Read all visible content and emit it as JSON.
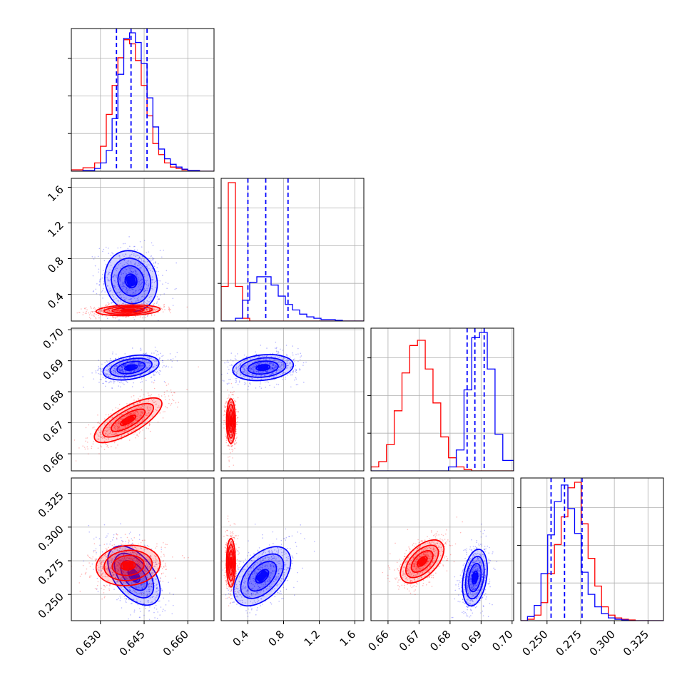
{
  "chart_data": {
    "type": "corner",
    "title": "",
    "grid": true,
    "series_colors": {
      "model_a": "#0000ff",
      "model_b": "#ff0000"
    },
    "parameters": [
      {
        "name": "",
        "range": [
          0.62,
          0.669
        ],
        "ticks": [
          0.63,
          0.645,
          0.66
        ],
        "tick_labels": [
          "0.630",
          "0.645",
          "0.660"
        ]
      },
      {
        "name": "",
        "range": [
          0.1,
          1.7
        ],
        "ticks": [
          0.4,
          0.8,
          1.2,
          1.6
        ],
        "tick_labels": [
          "0.4",
          "0.8",
          "1.2",
          "1.6"
        ]
      },
      {
        "name": "",
        "range": [
          0.6545,
          0.7005
        ],
        "ticks": [
          0.66,
          0.67,
          0.68,
          0.69,
          0.7
        ],
        "tick_labels": [
          "0.66",
          "0.67",
          "0.68",
          "0.69",
          "0.70"
        ]
      },
      {
        "name": "",
        "range": [
          0.2305,
          0.3365
        ],
        "ticks": [
          0.25,
          0.275,
          0.3,
          0.325
        ],
        "tick_labels": [
          "0.250",
          "0.275",
          "0.300",
          "0.325"
        ]
      }
    ],
    "histograms": [
      {
        "param": 0,
        "quantiles_blue": [
          0.6355,
          0.6405,
          0.646
        ],
        "bin_edges": [
          0.62,
          0.624,
          0.628,
          0.63,
          0.632,
          0.634,
          0.636,
          0.638,
          0.64,
          0.642,
          0.644,
          0.646,
          0.648,
          0.65,
          0.652,
          0.654,
          0.656,
          0.658,
          0.66,
          0.664,
          0.669
        ],
        "blue": [
          0.0,
          0.005,
          0.02,
          0.06,
          0.15,
          0.38,
          0.7,
          0.96,
          1.0,
          0.93,
          0.78,
          0.53,
          0.32,
          0.16,
          0.09,
          0.05,
          0.03,
          0.015,
          0.005,
          0.0
        ],
        "red": [
          0.01,
          0.025,
          0.06,
          0.18,
          0.41,
          0.62,
          0.82,
          0.95,
          0.92,
          0.8,
          0.62,
          0.4,
          0.2,
          0.12,
          0.06,
          0.03,
          0.02,
          0.01,
          0.005,
          0.0
        ]
      },
      {
        "param": 1,
        "quantiles_blue": [
          0.4,
          0.6,
          0.85
        ],
        "bin_edges": [
          0.1,
          0.18,
          0.26,
          0.34,
          0.42,
          0.5,
          0.58,
          0.66,
          0.74,
          0.82,
          0.9,
          0.98,
          1.06,
          1.14,
          1.22,
          1.3,
          1.38,
          1.46,
          1.54,
          1.62,
          1.7
        ],
        "blue": [
          0.0,
          0.0,
          0.02,
          0.15,
          0.28,
          0.32,
          0.32,
          0.26,
          0.18,
          0.12,
          0.08,
          0.05,
          0.03,
          0.02,
          0.01,
          0.01,
          0.005,
          0.0,
          0.0,
          0.0
        ],
        "red": [
          0.25,
          1.0,
          0.25,
          0.02,
          0.0,
          0.0,
          0.0,
          0.0,
          0.0,
          0.0,
          0.0,
          0.0,
          0.0,
          0.0,
          0.0,
          0.0,
          0.0,
          0.0,
          0.0,
          0.0
        ]
      },
      {
        "param": 2,
        "quantiles_blue": [
          0.6855,
          0.688,
          0.691
        ],
        "bin_edges": [
          0.6545,
          0.657,
          0.6595,
          0.662,
          0.6645,
          0.667,
          0.6695,
          0.672,
          0.6745,
          0.677,
          0.6795,
          0.682,
          0.6845,
          0.687,
          0.6895,
          0.692,
          0.6945,
          0.697,
          0.7005
        ],
        "blue": [
          0.0,
          0.0,
          0.0,
          0.0,
          0.0,
          0.0,
          0.0,
          0.0,
          0.0,
          0.0,
          0.03,
          0.16,
          0.62,
          1.02,
          1.06,
          0.78,
          0.28,
          0.08
        ],
        "red": [
          0.03,
          0.07,
          0.2,
          0.46,
          0.75,
          0.96,
          1.0,
          0.78,
          0.52,
          0.26,
          0.1,
          0.03,
          0.01,
          0.0,
          0.0,
          0.0,
          0.0,
          0.0
        ]
      },
      {
        "param": 3,
        "quantiles_blue": [
          0.253,
          0.263,
          0.276
        ],
        "bin_edges": [
          0.2305,
          0.2355,
          0.2405,
          0.2455,
          0.2505,
          0.2555,
          0.2605,
          0.2655,
          0.2705,
          0.2755,
          0.2805,
          0.2855,
          0.2905,
          0.2955,
          0.3005,
          0.3055,
          0.3105,
          0.3155,
          0.3205,
          0.3255,
          0.3305,
          0.3365
        ],
        "blue": [
          0.0,
          0.03,
          0.11,
          0.34,
          0.62,
          0.86,
          0.98,
          0.81,
          0.63,
          0.35,
          0.19,
          0.1,
          0.05,
          0.02,
          0.01,
          0.005,
          0.0,
          0.0,
          0.0,
          0.0,
          0.0
        ],
        "red": [
          0.0,
          0.01,
          0.04,
          0.13,
          0.34,
          0.55,
          0.75,
          0.96,
          1.0,
          0.7,
          0.45,
          0.25,
          0.1,
          0.04,
          0.02,
          0.01,
          0.005,
          0.0,
          0.0,
          0.0,
          0.0
        ]
      }
    ],
    "pairs": [
      {
        "x": 0,
        "y": 1,
        "blue": {
          "cx": 0.6405,
          "cy": 0.55,
          "sx": 0.0045,
          "sy": 0.17,
          "rho": -0.1
        },
        "red": {
          "cx": 0.6395,
          "cy": 0.22,
          "sx": 0.0055,
          "sy": 0.03,
          "rho": 0.2
        }
      },
      {
        "x": 0,
        "y": 2,
        "blue": {
          "cx": 0.6405,
          "cy": 0.6878,
          "sx": 0.0048,
          "sy": 0.002,
          "rho": 0.35
        },
        "red": {
          "cx": 0.6395,
          "cy": 0.6708,
          "sx": 0.0058,
          "sy": 0.0036,
          "rho": 0.75
        }
      },
      {
        "x": 0,
        "y": 3,
        "blue": {
          "cx": 0.6415,
          "cy": 0.264,
          "sx": 0.0045,
          "sy": 0.011,
          "rho": -0.5
        },
        "red": {
          "cx": 0.6395,
          "cy": 0.2715,
          "sx": 0.0055,
          "sy": 0.0075,
          "rho": 0.1
        }
      },
      {
        "x": 1,
        "y": 2,
        "blue": {
          "cx": 0.57,
          "cy": 0.6878,
          "sx": 0.17,
          "sy": 0.0021,
          "rho": 0.2
        },
        "red": {
          "cx": 0.21,
          "cy": 0.6705,
          "sx": 0.025,
          "sy": 0.0036,
          "rho": 0.0
        }
      },
      {
        "x": 1,
        "y": 3,
        "blue": {
          "cx": 0.56,
          "cy": 0.2635,
          "sx": 0.16,
          "sy": 0.011,
          "rho": 0.5
        },
        "red": {
          "cx": 0.21,
          "cy": 0.2735,
          "sx": 0.025,
          "sy": 0.009,
          "rho": 0.0
        }
      },
      {
        "x": 2,
        "y": 3,
        "blue": {
          "cx": 0.688,
          "cy": 0.2625,
          "sx": 0.002,
          "sy": 0.0105,
          "rho": 0.3
        },
        "red": {
          "cx": 0.671,
          "cy": 0.2745,
          "sx": 0.0035,
          "sy": 0.008,
          "rho": 0.55
        }
      }
    ]
  }
}
